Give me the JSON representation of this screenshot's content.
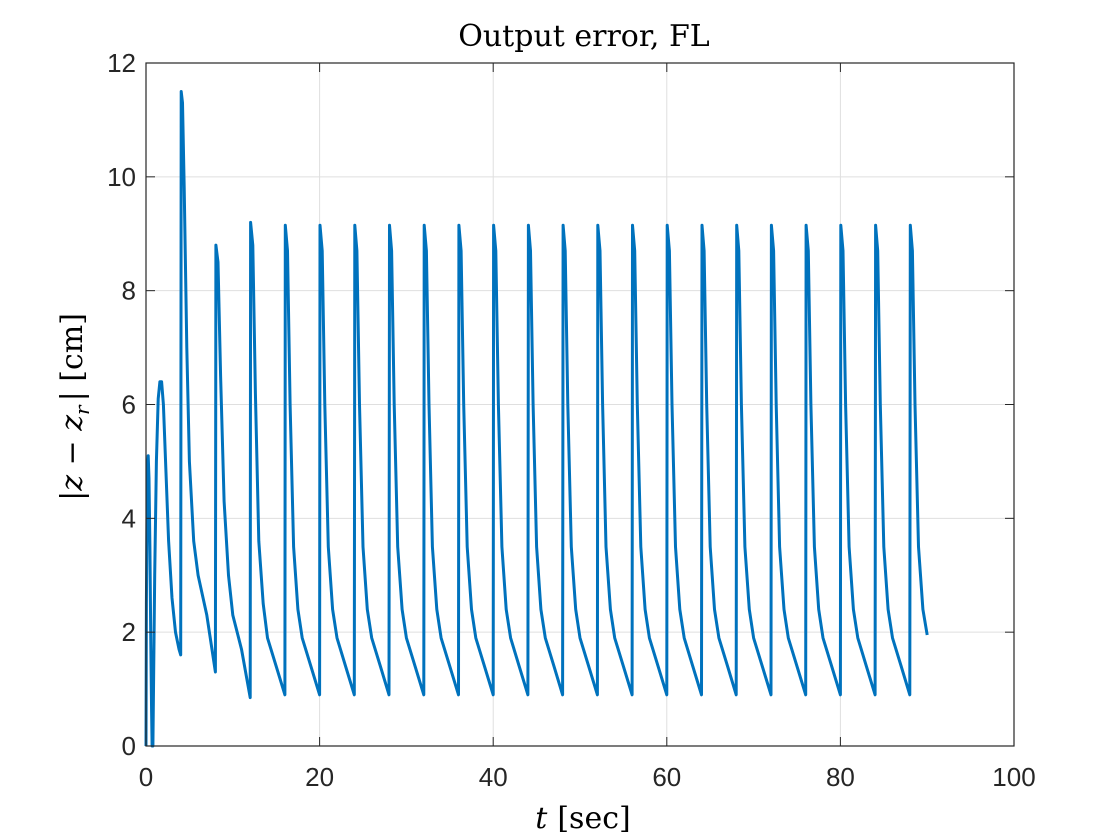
{
  "chart_data": {
    "type": "line",
    "title": "Output error, FL",
    "xlabel_var": "t",
    "xlabel_unit": "[sec]",
    "ylabel_text": "|z − z",
    "ylabel_sub": "r",
    "ylabel_tail": "| [cm]",
    "xlim": [
      0,
      100
    ],
    "ylim": [
      0,
      12
    ],
    "xticks": [
      0,
      20,
      40,
      60,
      80,
      100
    ],
    "yticks": [
      0,
      2,
      4,
      6,
      8,
      10,
      12
    ],
    "xtick_labels": [
      "0",
      "20",
      "40",
      "60",
      "80",
      "100"
    ],
    "ytick_labels": [
      "0",
      "2",
      "4",
      "6",
      "8",
      "10",
      "12"
    ],
    "grid": true,
    "series": [
      {
        "color": "#0072BD",
        "points": [
          [
            0,
            0
          ],
          [
            0.05,
            2.5
          ],
          [
            0.15,
            4.8
          ],
          [
            0.25,
            5.1
          ],
          [
            0.35,
            4.7
          ],
          [
            0.45,
            3.5
          ],
          [
            0.55,
            1.8
          ],
          [
            0.65,
            0.6
          ],
          [
            0.7,
            0
          ],
          [
            0.8,
            0
          ],
          [
            1.0,
            3.0
          ],
          [
            1.2,
            5.0
          ],
          [
            1.4,
            6.1
          ],
          [
            1.6,
            6.4
          ],
          [
            1.8,
            6.4
          ],
          [
            2.0,
            6.0
          ],
          [
            2.3,
            4.8
          ],
          [
            2.6,
            3.6
          ],
          [
            3.0,
            2.6
          ],
          [
            3.4,
            2.0
          ],
          [
            3.8,
            1.7
          ],
          [
            4.0,
            1.6
          ],
          [
            4.05,
            11.5
          ],
          [
            4.2,
            11.3
          ],
          [
            4.4,
            9.8
          ],
          [
            4.7,
            7.0
          ],
          [
            5.0,
            5.0
          ],
          [
            5.5,
            3.6
          ],
          [
            6.0,
            3.0
          ],
          [
            7.0,
            2.3
          ],
          [
            8.0,
            1.3
          ],
          [
            8.05,
            8.8
          ],
          [
            8.3,
            8.5
          ],
          [
            8.6,
            6.5
          ],
          [
            9.0,
            4.3
          ],
          [
            9.5,
            3.0
          ],
          [
            10.0,
            2.3
          ],
          [
            11.0,
            1.7
          ],
          [
            12.0,
            0.85
          ],
          [
            12.05,
            9.2
          ],
          [
            12.3,
            8.8
          ],
          [
            12.6,
            6.2
          ],
          [
            13.0,
            3.6
          ],
          [
            13.5,
            2.5
          ],
          [
            14.0,
            1.9
          ],
          [
            15.0,
            1.4
          ],
          [
            16.0,
            0.9
          ],
          [
            16.05,
            9.15
          ],
          [
            16.3,
            8.7
          ],
          [
            16.6,
            6.0
          ],
          [
            17.0,
            3.5
          ],
          [
            17.5,
            2.4
          ],
          [
            18.0,
            1.9
          ],
          [
            19.0,
            1.4
          ],
          [
            20.0,
            0.9
          ],
          [
            20.05,
            9.15
          ],
          [
            20.3,
            8.7
          ],
          [
            20.6,
            6.0
          ],
          [
            21.0,
            3.5
          ],
          [
            21.5,
            2.4
          ],
          [
            22.0,
            1.9
          ],
          [
            23.0,
            1.4
          ],
          [
            24.0,
            0.9
          ],
          [
            24.05,
            9.15
          ],
          [
            24.3,
            8.7
          ],
          [
            24.6,
            6.0
          ],
          [
            25.0,
            3.5
          ],
          [
            25.5,
            2.4
          ],
          [
            26.0,
            1.9
          ],
          [
            27.0,
            1.4
          ],
          [
            28.0,
            0.9
          ],
          [
            28.05,
            9.15
          ],
          [
            28.3,
            8.7
          ],
          [
            28.6,
            6.0
          ],
          [
            29.0,
            3.5
          ],
          [
            29.5,
            2.4
          ],
          [
            30.0,
            1.9
          ],
          [
            31.0,
            1.4
          ],
          [
            32.0,
            0.9
          ],
          [
            32.05,
            9.15
          ],
          [
            32.3,
            8.7
          ],
          [
            32.6,
            6.0
          ],
          [
            33.0,
            3.5
          ],
          [
            33.5,
            2.4
          ],
          [
            34.0,
            1.9
          ],
          [
            35.0,
            1.4
          ],
          [
            36.0,
            0.9
          ],
          [
            36.05,
            9.15
          ],
          [
            36.3,
            8.7
          ],
          [
            36.6,
            6.0
          ],
          [
            37.0,
            3.5
          ],
          [
            37.5,
            2.4
          ],
          [
            38.0,
            1.9
          ],
          [
            39.0,
            1.4
          ],
          [
            40.0,
            0.9
          ],
          [
            40.05,
            9.15
          ],
          [
            40.3,
            8.7
          ],
          [
            40.6,
            6.0
          ],
          [
            41.0,
            3.5
          ],
          [
            41.5,
            2.4
          ],
          [
            42.0,
            1.9
          ],
          [
            43.0,
            1.4
          ],
          [
            44.0,
            0.9
          ],
          [
            44.05,
            9.15
          ],
          [
            44.3,
            8.7
          ],
          [
            44.6,
            6.0
          ],
          [
            45.0,
            3.5
          ],
          [
            45.5,
            2.4
          ],
          [
            46.0,
            1.9
          ],
          [
            47.0,
            1.4
          ],
          [
            48.0,
            0.9
          ],
          [
            48.05,
            9.15
          ],
          [
            48.3,
            8.7
          ],
          [
            48.6,
            6.0
          ],
          [
            49.0,
            3.5
          ],
          [
            49.5,
            2.4
          ],
          [
            50.0,
            1.9
          ],
          [
            51.0,
            1.4
          ],
          [
            52.0,
            0.9
          ],
          [
            52.05,
            9.15
          ],
          [
            52.3,
            8.7
          ],
          [
            52.6,
            6.0
          ],
          [
            53.0,
            3.5
          ],
          [
            53.5,
            2.4
          ],
          [
            54.0,
            1.9
          ],
          [
            55.0,
            1.4
          ],
          [
            56.0,
            0.9
          ],
          [
            56.05,
            9.15
          ],
          [
            56.3,
            8.7
          ],
          [
            56.6,
            6.0
          ],
          [
            57.0,
            3.5
          ],
          [
            57.5,
            2.4
          ],
          [
            58.0,
            1.9
          ],
          [
            59.0,
            1.4
          ],
          [
            60.0,
            0.9
          ],
          [
            60.05,
            9.15
          ],
          [
            60.3,
            8.7
          ],
          [
            60.6,
            6.0
          ],
          [
            61.0,
            3.5
          ],
          [
            61.5,
            2.4
          ],
          [
            62.0,
            1.9
          ],
          [
            63.0,
            1.4
          ],
          [
            64.0,
            0.9
          ],
          [
            64.05,
            9.15
          ],
          [
            64.3,
            8.7
          ],
          [
            64.6,
            6.0
          ],
          [
            65.0,
            3.5
          ],
          [
            65.5,
            2.4
          ],
          [
            66.0,
            1.9
          ],
          [
            67.0,
            1.4
          ],
          [
            68.0,
            0.9
          ],
          [
            68.05,
            9.15
          ],
          [
            68.3,
            8.7
          ],
          [
            68.6,
            6.0
          ],
          [
            69.0,
            3.5
          ],
          [
            69.5,
            2.4
          ],
          [
            70.0,
            1.9
          ],
          [
            71.0,
            1.4
          ],
          [
            72.0,
            0.9
          ],
          [
            72.05,
            9.15
          ],
          [
            72.3,
            8.7
          ],
          [
            72.6,
            6.0
          ],
          [
            73.0,
            3.5
          ],
          [
            73.5,
            2.4
          ],
          [
            74.0,
            1.9
          ],
          [
            75.0,
            1.4
          ],
          [
            76.0,
            0.9
          ],
          [
            76.05,
            9.15
          ],
          [
            76.3,
            8.7
          ],
          [
            76.6,
            6.0
          ],
          [
            77.0,
            3.5
          ],
          [
            77.5,
            2.4
          ],
          [
            78.0,
            1.9
          ],
          [
            79.0,
            1.4
          ],
          [
            80.0,
            0.9
          ],
          [
            80.05,
            9.15
          ],
          [
            80.3,
            8.7
          ],
          [
            80.6,
            6.0
          ],
          [
            81.0,
            3.5
          ],
          [
            81.5,
            2.4
          ],
          [
            82.0,
            1.9
          ],
          [
            83.0,
            1.4
          ],
          [
            84.0,
            0.9
          ],
          [
            84.05,
            9.15
          ],
          [
            84.3,
            8.7
          ],
          [
            84.6,
            6.0
          ],
          [
            85.0,
            3.5
          ],
          [
            85.5,
            2.4
          ],
          [
            86.0,
            1.9
          ],
          [
            87.0,
            1.4
          ],
          [
            88.0,
            0.9
          ],
          [
            88.05,
            9.15
          ],
          [
            88.3,
            8.7
          ],
          [
            88.6,
            6.0
          ],
          [
            89.0,
            3.5
          ],
          [
            89.5,
            2.4
          ],
          [
            90.0,
            1.95
          ]
        ]
      }
    ]
  }
}
